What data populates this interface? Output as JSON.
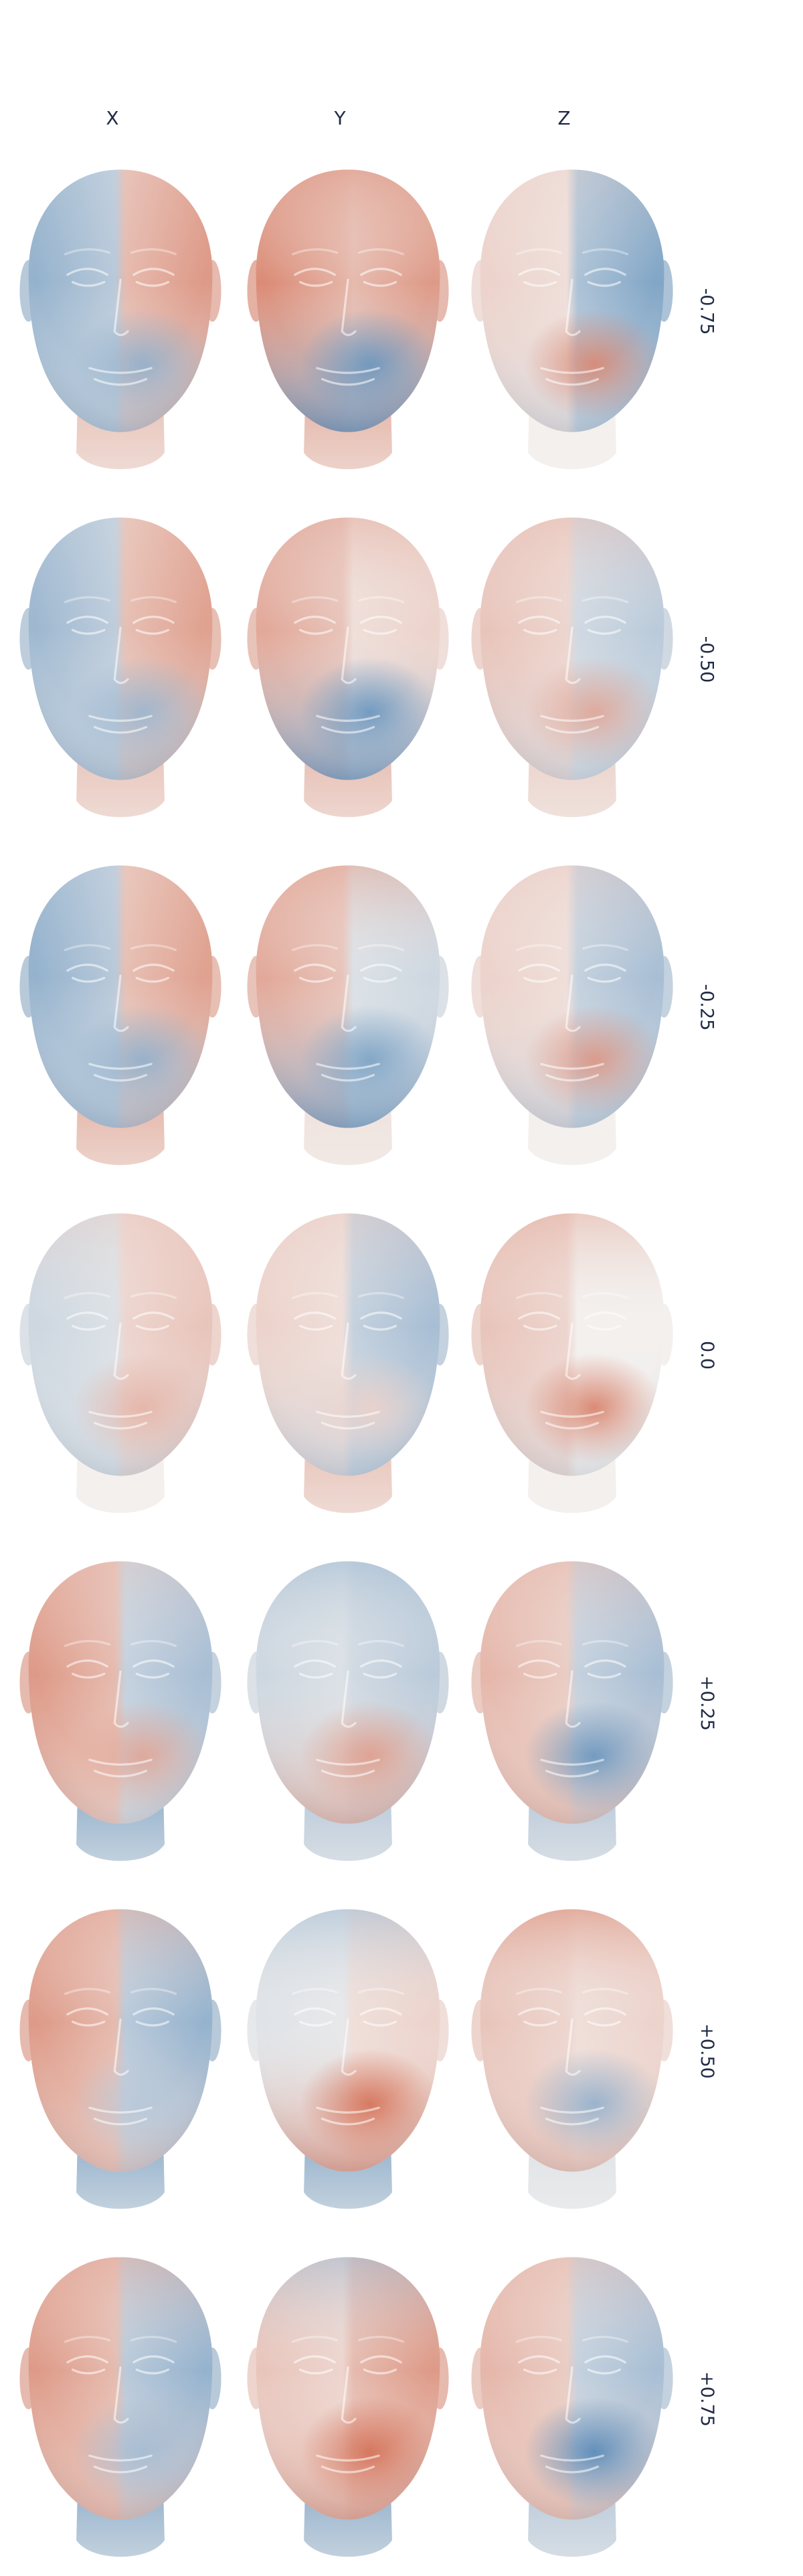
{
  "columns": [
    "X",
    "Y",
    "Z"
  ],
  "rows": [
    "-0.75",
    "-0.50",
    "-0.25",
    "0.0",
    "+0.25",
    "+0.50",
    "+0.75"
  ],
  "colors": {
    "positive": "#cf5a3c",
    "negative": "#2f6faa",
    "neutral": "#f3f0ee",
    "text": "#1f2a44"
  },
  "maps": [
    [
      {
        "l": -0.5,
        "r": 0.6,
        "top": 0.0,
        "bottom": -0.5,
        "spot": -0.5,
        "neck": 0.3
      },
      {
        "l": 0.7,
        "r": 0.6,
        "top": 0.6,
        "bottom": -0.95,
        "spot": -0.7,
        "neck": 0.4
      },
      {
        "l": 0.2,
        "r": -0.6,
        "top": 0.2,
        "bottom": -0.3,
        "spot": 0.7,
        "neck": 0.0
      }
    ],
    [
      {
        "l": -0.45,
        "r": 0.55,
        "top": 0.0,
        "bottom": -0.5,
        "spot": -0.45,
        "neck": 0.3
      },
      {
        "l": 0.5,
        "r": 0.2,
        "top": 0.5,
        "bottom": -0.9,
        "spot": -0.7,
        "neck": 0.35
      },
      {
        "l": 0.3,
        "r": -0.3,
        "top": 0.4,
        "bottom": -0.3,
        "spot": 0.5,
        "neck": 0.2
      }
    ],
    [
      {
        "l": -0.5,
        "r": 0.55,
        "top": 0.0,
        "bottom": -0.55,
        "spot": -0.5,
        "neck": 0.4
      },
      {
        "l": 0.5,
        "r": -0.2,
        "top": 0.55,
        "bottom": -0.85,
        "spot": -0.6,
        "neck": 0.1
      },
      {
        "l": 0.2,
        "r": -0.4,
        "top": 0.3,
        "bottom": -0.4,
        "spot": 0.6,
        "neck": 0.0
      }
    ],
    [
      {
        "l": -0.2,
        "r": 0.3,
        "top": 0.3,
        "bottom": -0.3,
        "spot": 0.4,
        "neck": 0.0
      },
      {
        "l": 0.2,
        "r": -0.4,
        "top": 0.3,
        "bottom": -0.4,
        "spot": 0.2,
        "neck": 0.3
      },
      {
        "l": 0.3,
        "r": 0.0,
        "top": 0.5,
        "bottom": -0.2,
        "spot": 0.75,
        "neck": 0.0
      }
    ],
    [
      {
        "l": 0.6,
        "r": -0.4,
        "top": 0.3,
        "bottom": 0.2,
        "spot": 0.5,
        "neck": -0.5
      },
      {
        "l": -0.2,
        "r": -0.3,
        "top": -0.5,
        "bottom": 0.6,
        "spot": 0.55,
        "neck": -0.3
      },
      {
        "l": 0.4,
        "r": -0.4,
        "top": 0.4,
        "bottom": 0.5,
        "spot": -0.7,
        "neck": -0.3
      }
    ],
    [
      {
        "l": 0.6,
        "r": -0.5,
        "top": 0.5,
        "bottom": 0.4,
        "spot": -0.3,
        "neck": -0.5
      },
      {
        "l": -0.1,
        "r": 0.2,
        "top": -0.5,
        "bottom": 0.8,
        "spot": 0.85,
        "neck": -0.5
      },
      {
        "l": 0.3,
        "r": 0.2,
        "top": 0.7,
        "bottom": 0.5,
        "spot": -0.5,
        "neck": -0.1
      }
    ],
    [
      {
        "l": 0.6,
        "r": -0.5,
        "top": 0.5,
        "bottom": 0.5,
        "spot": -0.4,
        "neck": -0.5
      },
      {
        "l": 0.3,
        "r": 0.6,
        "top": -0.5,
        "bottom": 0.7,
        "spot": 0.85,
        "neck": -0.5
      },
      {
        "l": 0.4,
        "r": -0.4,
        "top": 0.4,
        "bottom": 0.5,
        "spot": -0.8,
        "neck": -0.3
      }
    ]
  ]
}
